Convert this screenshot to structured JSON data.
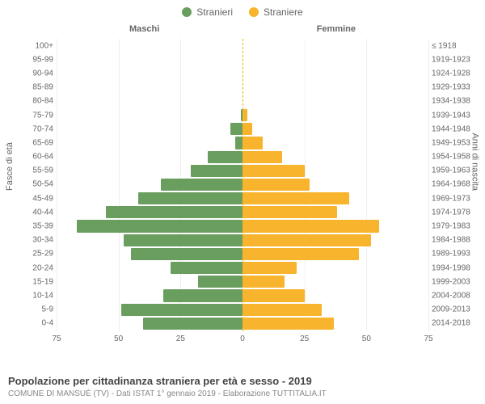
{
  "legend": {
    "male": {
      "label": "Stranieri",
      "color": "#6a9e5f"
    },
    "female": {
      "label": "Straniere",
      "color": "#f7b42c"
    }
  },
  "column_headers": {
    "left": "Maschi",
    "right": "Femmine"
  },
  "axis_labels": {
    "left": "Fasce di età",
    "right": "Anni di nascita"
  },
  "chart": {
    "type": "population-pyramid",
    "x_max": 75,
    "x_ticks": [
      75,
      50,
      25,
      0,
      25,
      50,
      75
    ],
    "bar_colors": {
      "male": "#6a9e5f",
      "female": "#f7b42c"
    },
    "grid_color": "#efefef",
    "center_line_color": "#e6b800",
    "background_color": "#ffffff",
    "label_fontsize": 10,
    "rows": [
      {
        "age": "100+",
        "birth": "≤ 1918",
        "m": 0,
        "f": 0
      },
      {
        "age": "95-99",
        "birth": "1919-1923",
        "m": 0,
        "f": 0
      },
      {
        "age": "90-94",
        "birth": "1924-1928",
        "m": 0,
        "f": 0
      },
      {
        "age": "85-89",
        "birth": "1929-1933",
        "m": 0,
        "f": 0
      },
      {
        "age": "80-84",
        "birth": "1934-1938",
        "m": 0,
        "f": 0
      },
      {
        "age": "75-79",
        "birth": "1939-1943",
        "m": 0.8,
        "f": 2
      },
      {
        "age": "70-74",
        "birth": "1944-1948",
        "m": 5,
        "f": 4
      },
      {
        "age": "65-69",
        "birth": "1949-1953",
        "m": 3,
        "f": 8
      },
      {
        "age": "60-64",
        "birth": "1954-1958",
        "m": 14,
        "f": 16
      },
      {
        "age": "55-59",
        "birth": "1959-1963",
        "m": 21,
        "f": 25
      },
      {
        "age": "50-54",
        "birth": "1964-1968",
        "m": 33,
        "f": 27
      },
      {
        "age": "45-49",
        "birth": "1969-1973",
        "m": 42,
        "f": 43
      },
      {
        "age": "40-44",
        "birth": "1974-1978",
        "m": 55,
        "f": 38
      },
      {
        "age": "35-39",
        "birth": "1979-1983",
        "m": 67,
        "f": 55
      },
      {
        "age": "30-34",
        "birth": "1984-1988",
        "m": 48,
        "f": 52
      },
      {
        "age": "25-29",
        "birth": "1989-1993",
        "m": 45,
        "f": 47
      },
      {
        "age": "20-24",
        "birth": "1994-1998",
        "m": 29,
        "f": 22
      },
      {
        "age": "15-19",
        "birth": "1999-2003",
        "m": 18,
        "f": 17
      },
      {
        "age": "10-14",
        "birth": "2004-2008",
        "m": 32,
        "f": 25
      },
      {
        "age": "5-9",
        "birth": "2009-2013",
        "m": 49,
        "f": 32
      },
      {
        "age": "0-4",
        "birth": "2014-2018",
        "m": 40,
        "f": 37
      }
    ]
  },
  "footer": {
    "title": "Popolazione per cittadinanza straniera per età e sesso - 2019",
    "subtitle": "COMUNE DI MANSUÈ (TV) - Dati ISTAT 1° gennaio 2019 - Elaborazione TUTTITALIA.IT"
  }
}
